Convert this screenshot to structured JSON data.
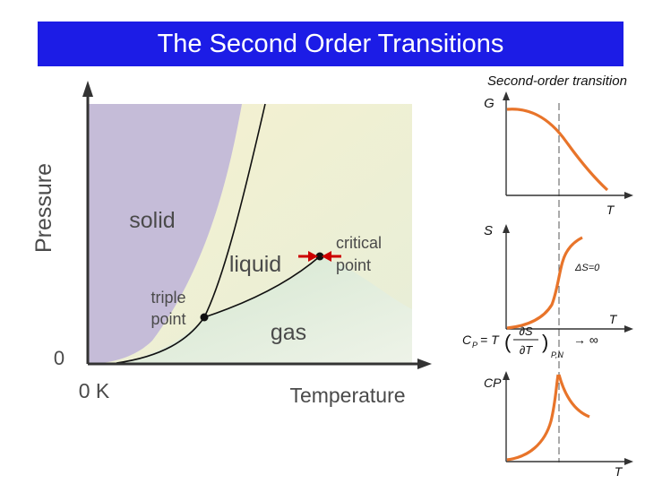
{
  "title": "The Second Order Transitions",
  "phase_diagram": {
    "y_axis_label": "Pressure",
    "x_axis_label": "Temperature",
    "origin_y": "0",
    "origin_x": "0 K",
    "regions": {
      "solid": "solid",
      "liquid": "liquid",
      "gas": "gas"
    },
    "triple_point": [
      "triple",
      "point"
    ],
    "critical_point": [
      "critical",
      "point"
    ],
    "colors": {
      "solid": "#c5bcd8",
      "liquid": "#f6f1cf",
      "gas": "#d9e9d3",
      "curve": "#111111",
      "arrow": "#cc0000"
    }
  },
  "panels": {
    "heading": "Second-order transition",
    "g_panel": {
      "y_label": "G",
      "x_label": "T"
    },
    "s_panel": {
      "y_label": "S",
      "x_label": "T",
      "annotation": "ΔS=0"
    },
    "cp_panel": {
      "y_label": "CP",
      "x_label": "T"
    },
    "formula": {
      "lhs": "C",
      "lhs_sub": "P",
      "eq": "= T",
      "numerator": "∂S",
      "denominator": "∂T",
      "sub": "P,N",
      "rhs": "→ ∞"
    },
    "curve_color": "#e8742a"
  }
}
